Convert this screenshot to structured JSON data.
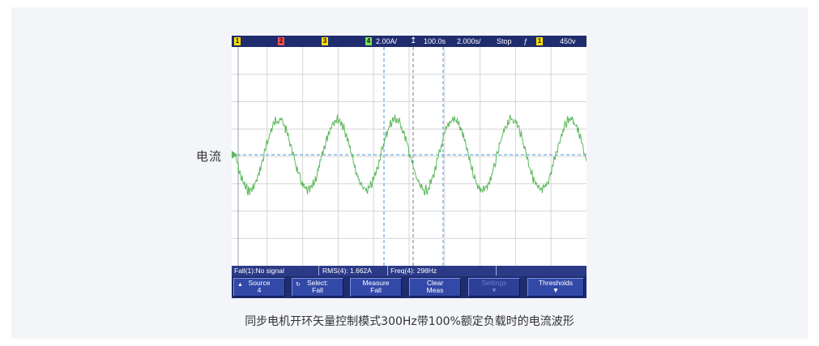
{
  "side_label": "电流",
  "caption": "同步电机开环矢量控制模式300Hz带100%额定负载时的电流波形",
  "scope": {
    "channels": [
      {
        "num": "1",
        "color": "#ffe000"
      },
      {
        "num": "2",
        "color": "#ff5050"
      },
      {
        "num": "3",
        "color": "#ffe000"
      },
      {
        "num": "4",
        "color": "#7ee05a"
      }
    ],
    "ch4_scale": "2.00A/",
    "delay": "100.0s",
    "timebase": "2.000s/",
    "run_state": "Stop",
    "trigger_source": "1",
    "trigger_level": "450v",
    "status": {
      "fall": "Fall(1):No signal",
      "rms": "RMS(4): 1.662A",
      "freq": "Freq(4): 298Hz"
    },
    "softkeys": [
      {
        "line1": "Source",
        "line2": "4",
        "disabled": false
      },
      {
        "line1": "Select:",
        "line2": "Fall",
        "disabled": false
      },
      {
        "line1": "Measure",
        "line2": "Fall",
        "disabled": false
      },
      {
        "line1": "Clear",
        "line2": "Meas",
        "disabled": false
      },
      {
        "line1": "Settings",
        "line2": "",
        "disabled": true
      },
      {
        "line1": "Thresholds",
        "line2": "",
        "disabled": false
      }
    ],
    "trace_color": "#5cb85c",
    "grid_color": "#d6d6d6"
  }
}
